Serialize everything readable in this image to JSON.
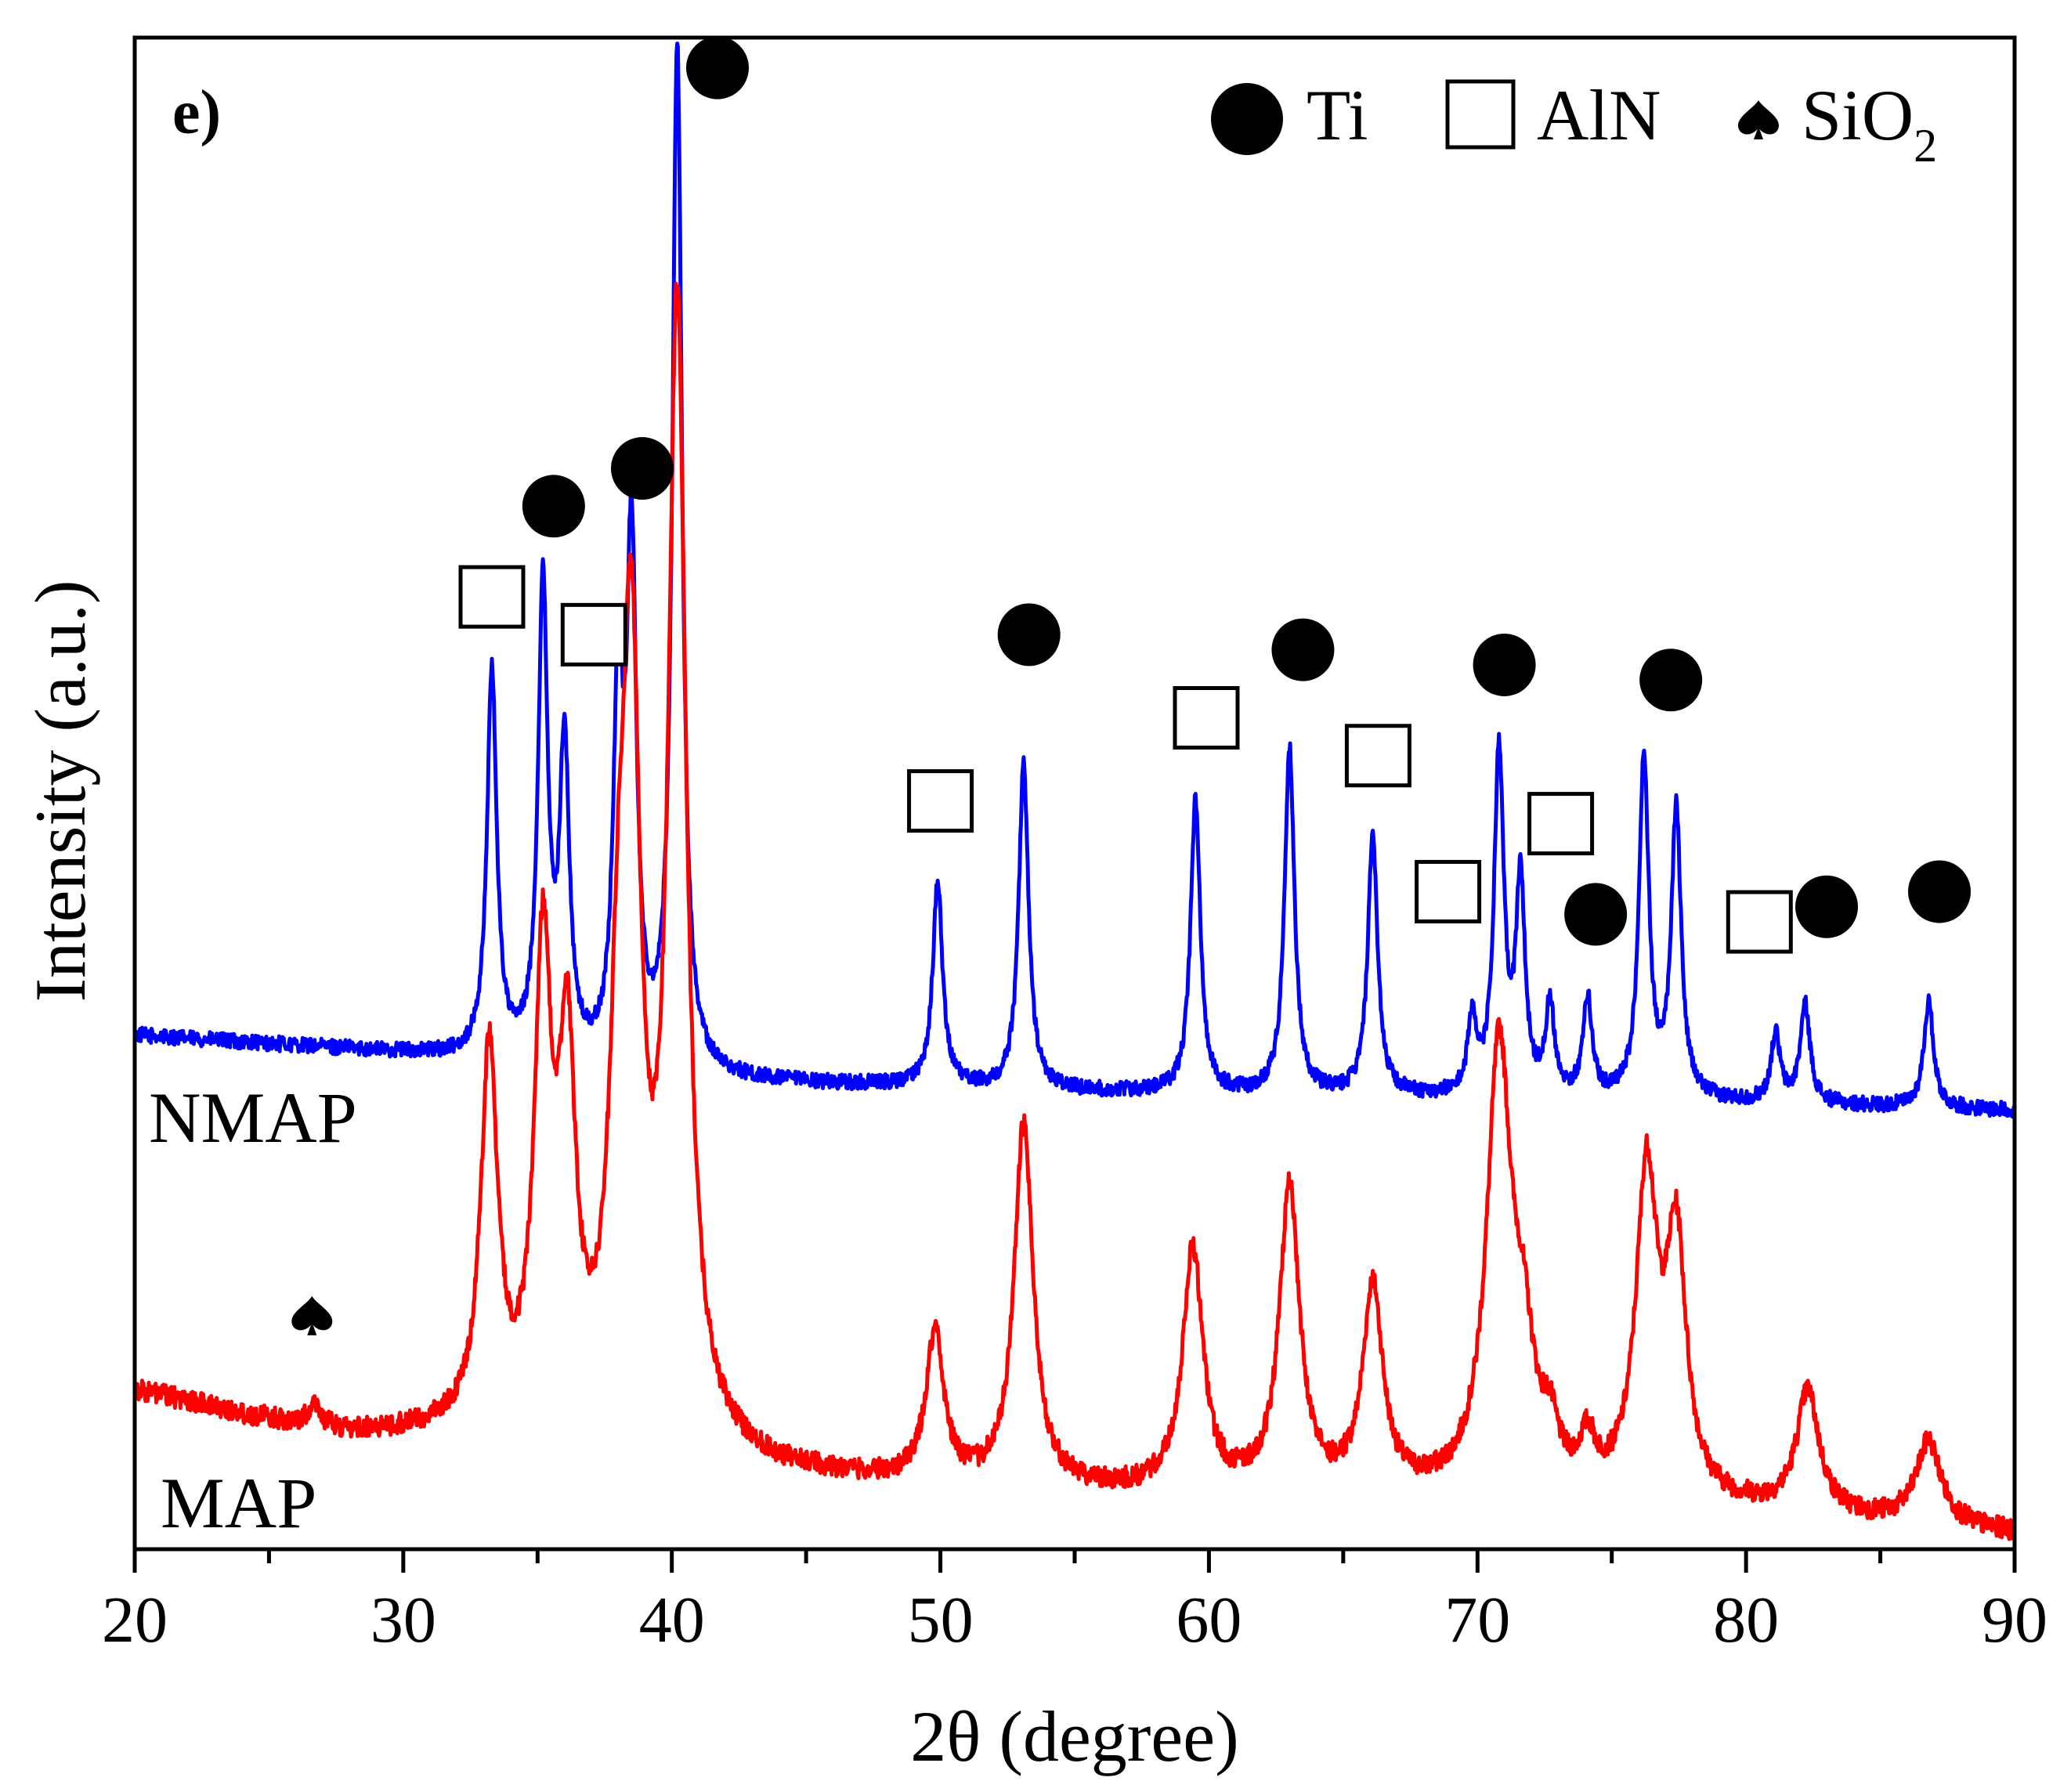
{
  "chart_data": {
    "type": "line",
    "panel_label": "e)",
    "xlabel": "2θ (degree)",
    "ylabel": "Intensity (a.u.)",
    "xlim": [
      20,
      90
    ],
    "ylim": [
      0,
      100
    ],
    "x_ticks": [
      20,
      30,
      40,
      50,
      60,
      70,
      80,
      90
    ],
    "x_tick_labels": [
      "20",
      "30",
      "40",
      "50",
      "60",
      "70",
      "80",
      "90"
    ],
    "y_ticks_shown": false,
    "legend": {
      "position": "top-right",
      "entries": [
        {
          "symbol": "filled-circle",
          "label": "Ti"
        },
        {
          "symbol": "open-square",
          "label": "AlN"
        },
        {
          "symbol": "spade",
          "label": "SiO",
          "subscript": "2"
        }
      ]
    },
    "series": [
      {
        "name": "NMAP",
        "color": "#0000ff",
        "baseline": [
          [
            20,
            34.0
          ],
          [
            30,
            32.8
          ],
          [
            40,
            31.0
          ],
          [
            50,
            30.5
          ],
          [
            60,
            30.0
          ],
          [
            70,
            29.8
          ],
          [
            80,
            29.5
          ],
          [
            90,
            29.0
          ]
        ],
        "peaks": [
          {
            "x": 33.3,
            "height": 25.5,
            "width": 0.22
          },
          {
            "x": 35.2,
            "height": 31.0,
            "width": 0.22
          },
          {
            "x": 36.0,
            "height": 20.5,
            "width": 0.22
          },
          {
            "x": 38.0,
            "height": 23.5,
            "width": 0.22
          },
          {
            "x": 38.5,
            "height": 33.5,
            "width": 0.22
          },
          {
            "x": 40.2,
            "height": 68.0,
            "width": 0.22
          },
          {
            "x": 49.9,
            "height": 13.5,
            "width": 0.22
          },
          {
            "x": 53.1,
            "height": 21.5,
            "width": 0.22
          },
          {
            "x": 59.5,
            "height": 19.5,
            "width": 0.22
          },
          {
            "x": 63.0,
            "height": 23.0,
            "width": 0.22
          },
          {
            "x": 66.1,
            "height": 17.0,
            "width": 0.22
          },
          {
            "x": 69.8,
            "height": 5.0,
            "width": 0.18
          },
          {
            "x": 70.8,
            "height": 22.5,
            "width": 0.22
          },
          {
            "x": 71.6,
            "height": 14.0,
            "width": 0.2
          },
          {
            "x": 72.7,
            "height": 6.0,
            "width": 0.2
          },
          {
            "x": 74.1,
            "height": 6.5,
            "width": 0.2
          },
          {
            "x": 76.2,
            "height": 22.5,
            "width": 0.22
          },
          {
            "x": 77.4,
            "height": 19.0,
            "width": 0.22
          },
          {
            "x": 81.1,
            "height": 4.5,
            "width": 0.2
          },
          {
            "x": 82.2,
            "height": 6.5,
            "width": 0.22
          },
          {
            "x": 86.8,
            "height": 7.0,
            "width": 0.22
          }
        ],
        "noise": 0.5,
        "label_text": "NMAP"
      },
      {
        "name": "MAP",
        "color": "#ff0000",
        "baseline": [
          [
            20,
            10.5
          ],
          [
            24,
            8.8
          ],
          [
            28,
            7.5
          ],
          [
            32,
            7.5
          ],
          [
            36,
            6.5
          ],
          [
            40,
            6.5
          ],
          [
            44,
            5.0
          ],
          [
            50,
            4.0
          ],
          [
            60,
            3.5
          ],
          [
            70,
            3.2
          ],
          [
            80,
            2.5
          ],
          [
            90,
            1.0
          ]
        ],
        "peaks": [
          {
            "x": 26.7,
            "height": 1.5,
            "width": 0.25
          },
          {
            "x": 33.2,
            "height": 25.0,
            "width": 0.38
          },
          {
            "x": 35.2,
            "height": 30.5,
            "width": 0.38
          },
          {
            "x": 36.1,
            "height": 23.5,
            "width": 0.38
          },
          {
            "x": 38.0,
            "height": 20.0,
            "width": 0.4
          },
          {
            "x": 38.5,
            "height": 46.0,
            "width": 0.4
          },
          {
            "x": 40.2,
            "height": 74.0,
            "width": 0.4
          },
          {
            "x": 49.8,
            "height": 10.0,
            "width": 0.4
          },
          {
            "x": 53.1,
            "height": 24.0,
            "width": 0.42
          },
          {
            "x": 59.4,
            "height": 16.0,
            "width": 0.45
          },
          {
            "x": 63.0,
            "height": 20.0,
            "width": 0.45
          },
          {
            "x": 66.1,
            "height": 13.5,
            "width": 0.45
          },
          {
            "x": 70.8,
            "height": 29.0,
            "width": 0.55
          },
          {
            "x": 71.7,
            "height": 7.5,
            "width": 0.5
          },
          {
            "x": 72.7,
            "height": 3.0,
            "width": 0.35
          },
          {
            "x": 74.1,
            "height": 3.0,
            "width": 0.35
          },
          {
            "x": 76.3,
            "height": 21.0,
            "width": 0.48
          },
          {
            "x": 77.4,
            "height": 16.5,
            "width": 0.45
          },
          {
            "x": 82.3,
            "height": 8.0,
            "width": 0.5
          },
          {
            "x": 86.8,
            "height": 5.5,
            "width": 0.55
          }
        ],
        "noise": 0.7,
        "label_text": "MAP"
      }
    ],
    "phase_markers": [
      {
        "symbol": "filled-circle",
        "phase": "Ti",
        "x": 41.7,
        "y": 98.0
      },
      {
        "symbol": "filled-circle",
        "phase": "Ti",
        "x": 35.6,
        "y": 69.0
      },
      {
        "symbol": "filled-circle",
        "phase": "Ti",
        "x": 38.9,
        "y": 71.5
      },
      {
        "symbol": "filled-circle",
        "phase": "Ti",
        "x": 53.3,
        "y": 60.5
      },
      {
        "symbol": "filled-circle",
        "phase": "Ti",
        "x": 63.5,
        "y": 59.5
      },
      {
        "symbol": "filled-circle",
        "phase": "Ti",
        "x": 71.0,
        "y": 58.5
      },
      {
        "symbol": "filled-circle",
        "phase": "Ti",
        "x": 77.2,
        "y": 57.5
      },
      {
        "symbol": "filled-circle",
        "phase": "Ti",
        "x": 74.4,
        "y": 42.0
      },
      {
        "symbol": "filled-circle",
        "phase": "Ti",
        "x": 83.0,
        "y": 42.5
      },
      {
        "symbol": "filled-circle",
        "phase": "Ti",
        "x": 87.2,
        "y": 43.5
      },
      {
        "symbol": "open-square",
        "phase": "AlN",
        "x": 33.3,
        "y": 63.0
      },
      {
        "symbol": "open-square",
        "phase": "AlN",
        "x": 37.1,
        "y": 60.5
      },
      {
        "symbol": "open-square",
        "phase": "AlN",
        "x": 50.0,
        "y": 49.5
      },
      {
        "symbol": "open-square",
        "phase": "AlN",
        "x": 59.9,
        "y": 55.0
      },
      {
        "symbol": "open-square",
        "phase": "AlN",
        "x": 66.3,
        "y": 52.5
      },
      {
        "symbol": "open-square",
        "phase": "AlN",
        "x": 68.9,
        "y": 43.5
      },
      {
        "symbol": "open-square",
        "phase": "AlN",
        "x": 73.1,
        "y": 48.0
      },
      {
        "symbol": "open-square",
        "phase": "AlN",
        "x": 80.5,
        "y": 41.5
      },
      {
        "symbol": "spade",
        "phase": "SiO2",
        "x": 26.6,
        "y": 15.5
      }
    ]
  }
}
